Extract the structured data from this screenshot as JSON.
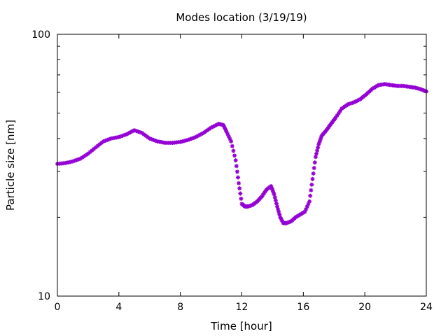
{
  "chart_data": {
    "type": "scatter",
    "title": "Modes location (3/19/19)",
    "xlabel": "Time [hour]",
    "ylabel": "Particle size [nm]",
    "xlim": [
      0,
      24
    ],
    "ylim": [
      10,
      100
    ],
    "yscale": "log",
    "xticks": [
      0,
      4,
      8,
      12,
      16,
      20,
      24
    ],
    "xtick_labels": [
      "0",
      "4",
      "8",
      "12",
      "16",
      "20",
      "24"
    ],
    "yticks": [
      10,
      100
    ],
    "ytick_labels": [
      "10",
      "100"
    ],
    "marker_color": "#9400d3",
    "grid": false,
    "series": [
      {
        "x": [
          0,
          0.5,
          1,
          1.5,
          2,
          2.5,
          3,
          3.5,
          4,
          4.5,
          5,
          5.5,
          6,
          6.5,
          7,
          7.5,
          8,
          8.5,
          9,
          9.5,
          10,
          10.5,
          10.8,
          11,
          11.3,
          11.6,
          11.8,
          12,
          12.2,
          12.4,
          12.7,
          13,
          13.3,
          13.6,
          13.9,
          14.1,
          14.3,
          14.5,
          14.7,
          14.9,
          15.2,
          15.5,
          15.8,
          16.1,
          16.4,
          16.6,
          16.8,
          17,
          17.2,
          17.5,
          17.8,
          18.1,
          18.5,
          18.9,
          19.3,
          19.7,
          20.1,
          20.5,
          20.9,
          21.3,
          21.7,
          22.1,
          22.5,
          22.9,
          23.3,
          23.7,
          24
        ],
        "values": [
          32.0,
          32.2,
          32.7,
          33.5,
          35.0,
          37.0,
          39.0,
          40.0,
          40.5,
          41.5,
          43.0,
          42.0,
          40.0,
          39.0,
          38.5,
          38.5,
          38.8,
          39.5,
          40.5,
          42.0,
          44.0,
          45.5,
          45.0,
          42.5,
          39.0,
          33.0,
          27.0,
          22.5,
          22.0,
          22.0,
          22.3,
          23.0,
          24.0,
          25.5,
          26.3,
          24.5,
          22.0,
          20.0,
          19.0,
          19.0,
          19.3,
          20.0,
          20.5,
          21.0,
          23.0,
          28.0,
          34.0,
          38.0,
          41.0,
          43.0,
          45.5,
          48.0,
          52.0,
          54.0,
          55.0,
          56.5,
          59.0,
          62.0,
          64.0,
          64.5,
          64.0,
          63.5,
          63.5,
          63.0,
          62.5,
          61.5,
          60.5
        ]
      }
    ]
  }
}
